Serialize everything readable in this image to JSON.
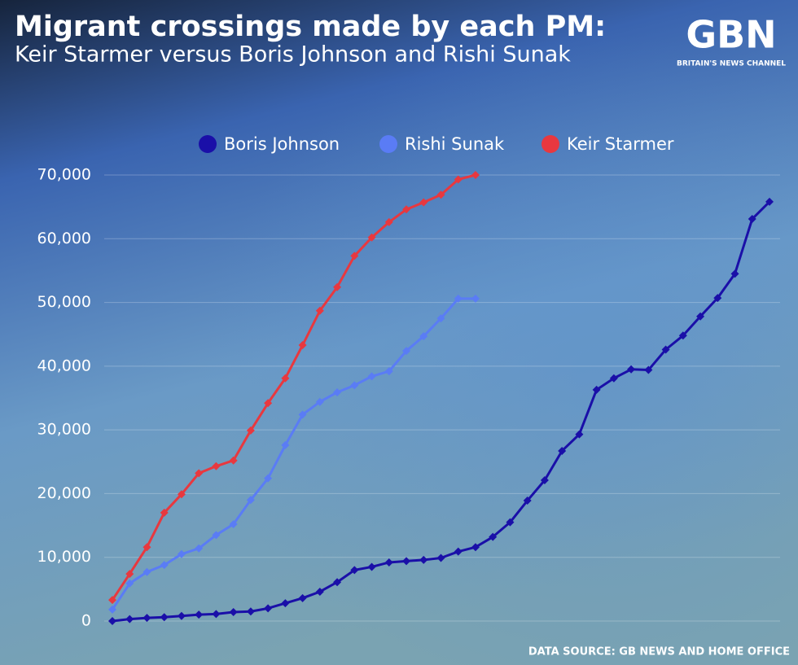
{
  "chart_data": {
    "type": "line",
    "title": "Migrant crossings made by each PM:",
    "subtitle": "Keir Starmer versus Boris Johnson and Rishi Sunak",
    "source": "DATA SOURCE: GB NEWS AND HOME OFFICE",
    "categories": [
      null,
      null,
      null,
      null,
      null,
      null,
      null,
      null,
      null,
      null,
      null,
      null,
      null,
      null,
      null,
      null,
      null,
      null,
      null,
      null,
      null,
      null,
      null,
      null,
      null,
      null,
      null,
      null,
      null,
      null,
      null,
      null,
      null,
      null,
      null,
      null,
      null,
      null,
      null
    ],
    "series": [
      {
        "name": "Boris Johnson",
        "color": "#1a0fa8",
        "values": [
          0,
          300,
          500,
          600,
          800,
          1000,
          1100,
          1400,
          1500,
          2000,
          2800,
          3600,
          4600,
          6100,
          8000,
          8500,
          9200,
          9400,
          9600,
          9900,
          10900,
          11600,
          13200,
          15500,
          18900,
          22100,
          26700,
          29300,
          36300,
          38100,
          39500,
          39400,
          42600,
          44800,
          47800,
          50700,
          54500,
          63100,
          65800
        ]
      },
      {
        "name": "Rishi Sunak",
        "color": "#5a7cf5",
        "values": [
          1800,
          5900,
          7700,
          8800,
          10500,
          11400,
          13500,
          15200,
          19000,
          22400,
          27600,
          32400,
          34400,
          35900,
          37000,
          38400,
          39200,
          42400,
          44700,
          47500,
          50600,
          50600,
          null,
          null,
          null,
          null,
          null,
          null,
          null,
          null,
          null,
          null,
          null,
          null,
          null,
          null,
          null,
          null,
          null
        ]
      },
      {
        "name": "Keir Starmer",
        "color": "#e8383f",
        "values": [
          3300,
          7400,
          11600,
          17000,
          19900,
          23200,
          24300,
          25200,
          29900,
          34200,
          38100,
          43300,
          48700,
          52400,
          57300,
          60200,
          62600,
          64600,
          65700,
          66900,
          69300,
          70000,
          null,
          null,
          null,
          null,
          null,
          null,
          null,
          null,
          null,
          null,
          null,
          null,
          null,
          null,
          null,
          null,
          null
        ]
      }
    ],
    "ylim": [
      0,
      70000
    ],
    "yticks": [
      0,
      {
        "value": 10000,
        "label": "10,000"
      },
      {
        "value": 20000,
        "label": "20,000"
      },
      {
        "value": 30000,
        "label": "30,000"
      },
      {
        "value": 40000,
        "label": "40,000"
      },
      {
        "value": 50000,
        "label": "50,000"
      },
      {
        "value": 60000,
        "label": "60,000"
      },
      {
        "value": 70000,
        "label": "70,000"
      }
    ],
    "grid": true
  },
  "logo": {
    "text": "GBN",
    "tagline": "BRITAIN'S NEWS CHANNEL"
  }
}
